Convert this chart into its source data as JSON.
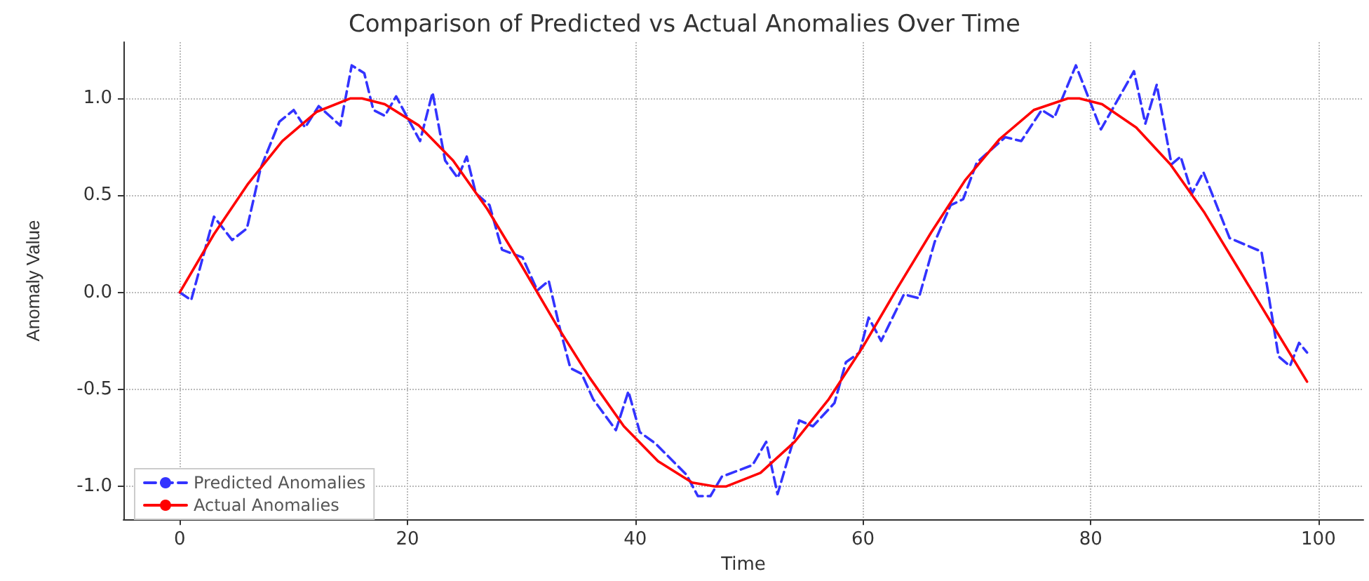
{
  "chart_data": {
    "type": "line",
    "title": "Comparison of Predicted vs Actual Anomalies Over Time",
    "xlabel": "Time",
    "ylabel": "Anomaly Value",
    "series": [
      {
        "name": "Predicted Anomalies",
        "color": "#3333ff",
        "line_style": "dashed",
        "x": [
          0,
          1,
          3,
          4.6,
          5.9,
          7.1,
          8.75,
          10,
          11,
          12.2,
          14.1,
          15.1,
          16.2,
          17,
          18,
          19,
          21.1,
          22.2,
          23.3,
          24.4,
          25.2,
          26,
          27.2,
          28.3,
          30.1,
          31.4,
          32.4,
          33.4,
          34.3,
          35.3,
          36.3,
          38.3,
          39.4,
          40.4,
          41.8,
          44.5,
          45.5,
          46.6,
          47.6,
          50.3,
          51.5,
          52.5,
          54.4,
          55.6,
          57.5,
          58.5,
          59.7,
          60.5,
          61.6,
          63.6,
          64.9,
          66.3,
          67.7,
          68.8,
          70,
          72.5,
          73.9,
          75.7,
          76.8,
          78.7,
          80.9,
          83.8,
          84.8,
          85.8,
          87.1,
          87.9,
          88.9,
          89.9,
          92.2,
          95,
          96.5,
          97.5,
          98.3,
          99
        ],
        "values": [
          0,
          -0.04,
          0.39,
          0.27,
          0.33,
          0.64,
          0.88,
          0.94,
          0.85,
          0.96,
          0.86,
          1.17,
          1.13,
          0.94,
          0.91,
          1.01,
          0.78,
          1.03,
          0.68,
          0.59,
          0.7,
          0.51,
          0.45,
          0.22,
          0.18,
          0.01,
          0.06,
          -0.19,
          -0.39,
          -0.42,
          -0.55,
          -0.71,
          -0.51,
          -0.72,
          -0.78,
          -0.94,
          -1.05,
          -1.05,
          -0.95,
          -0.89,
          -0.77,
          -1.04,
          -0.66,
          -0.69,
          -0.57,
          -0.36,
          -0.31,
          -0.13,
          -0.25,
          -0.01,
          -0.03,
          0.26,
          0.45,
          0.48,
          0.67,
          0.8,
          0.78,
          0.94,
          0.9,
          1.17,
          0.84,
          1.14,
          0.87,
          1.07,
          0.66,
          0.7,
          0.51,
          0.62,
          0.28,
          0.21,
          -0.33,
          -0.38,
          -0.26,
          -0.31
        ]
      },
      {
        "name": "Actual Anomalies",
        "color": "#ff0000",
        "line_style": "solid",
        "x": [
          0,
          3,
          6,
          9,
          12,
          15,
          16,
          18,
          21,
          24,
          27,
          30,
          33,
          36,
          39,
          42,
          45,
          47,
          48,
          51,
          54,
          57,
          60,
          63,
          66,
          69,
          72,
          75,
          78,
          79,
          81,
          84,
          87,
          90,
          93,
          96,
          99
        ],
        "values": [
          0,
          0.3,
          0.56,
          0.78,
          0.93,
          1.0,
          1.0,
          0.97,
          0.86,
          0.68,
          0.43,
          0.14,
          -0.16,
          -0.44,
          -0.69,
          -0.87,
          -0.98,
          -1.0,
          -1.0,
          -0.93,
          -0.77,
          -0.55,
          -0.28,
          0.02,
          0.31,
          0.58,
          0.79,
          0.94,
          1.0,
          1.0,
          0.97,
          0.85,
          0.66,
          0.41,
          0.12,
          -0.17,
          -0.46
        ]
      }
    ],
    "xlim": [
      -4.95,
      103.95
    ],
    "xticks": [
      0,
      20,
      40,
      60,
      80,
      100
    ],
    "ylim": [
      -1.17,
      1.29
    ],
    "yticks": [
      {
        "value": -1,
        "label": "-1.0"
      },
      {
        "value": -0.5,
        "label": "-0.5"
      },
      {
        "value": 0,
        "label": "0.0"
      },
      {
        "value": 0.5,
        "label": "0.5"
      },
      {
        "value": 1,
        "label": "1.0"
      }
    ],
    "grid": true,
    "legend": "bottom left",
    "marker": "none"
  }
}
